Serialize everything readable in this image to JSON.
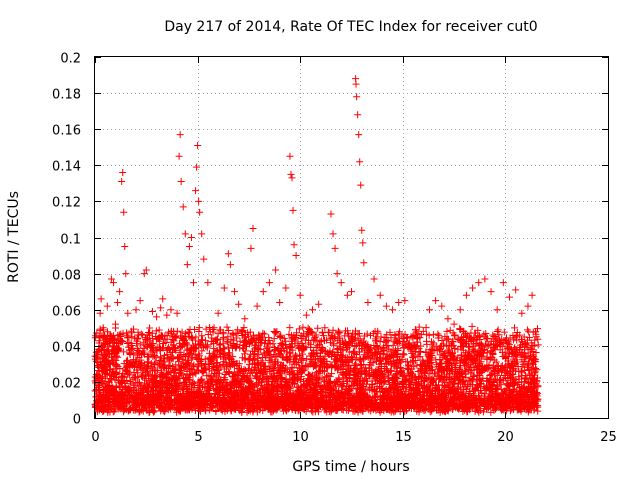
{
  "chart_data": {
    "type": "scatter",
    "title": "Day 217 of 2014, Rate Of TEC Index for receiver cut0",
    "xlabel": "GPS time / hours",
    "ylabel": "ROTI / TECUs",
    "xlim": [
      0,
      25
    ],
    "ylim": [
      0,
      0.2
    ],
    "xticks": [
      0,
      5,
      10,
      15,
      20,
      25
    ],
    "xtick_labels": [
      "0",
      "5",
      "10",
      "15",
      "20",
      "25"
    ],
    "yticks": [
      0,
      0.02,
      0.04,
      0.06,
      0.08,
      0.1,
      0.12,
      0.14,
      0.16,
      0.18,
      0.2
    ],
    "ytick_labels": [
      "0",
      "0.02",
      "0.04",
      "0.06",
      "0.08",
      "0.1",
      "0.12",
      "0.14",
      "0.16",
      "0.18",
      "0.2"
    ],
    "grid": true,
    "legend": "none",
    "marker": "plus",
    "color": "#ff0000",
    "series": [
      {
        "points": [
          [
            0.0,
            0.015
          ],
          [
            0.1,
            0.035
          ],
          [
            0.2,
            0.045
          ],
          [
            0.25,
            0.058
          ],
          [
            0.3,
            0.066
          ],
          [
            0.4,
            0.05
          ],
          [
            0.5,
            0.041
          ],
          [
            0.6,
            0.062
          ],
          [
            0.7,
            0.03
          ],
          [
            0.8,
            0.077
          ],
          [
            0.9,
            0.075
          ],
          [
            1.0,
            0.052
          ],
          [
            1.1,
            0.064
          ],
          [
            1.2,
            0.07
          ],
          [
            1.3,
            0.131
          ],
          [
            1.35,
            0.136
          ],
          [
            1.4,
            0.114
          ],
          [
            1.45,
            0.095
          ],
          [
            1.5,
            0.08
          ],
          [
            1.6,
            0.058
          ],
          [
            1.8,
            0.045
          ],
          [
            2.0,
            0.06
          ],
          [
            2.2,
            0.065
          ],
          [
            2.4,
            0.08
          ],
          [
            2.5,
            0.082
          ],
          [
            2.8,
            0.059
          ],
          [
            3.0,
            0.056
          ],
          [
            3.2,
            0.061
          ],
          [
            3.3,
            0.066
          ],
          [
            3.5,
            0.057
          ],
          [
            3.7,
            0.06
          ],
          [
            4.0,
            0.058
          ],
          [
            4.1,
            0.145
          ],
          [
            4.15,
            0.157
          ],
          [
            4.2,
            0.131
          ],
          [
            4.3,
            0.117
          ],
          [
            4.4,
            0.102
          ],
          [
            4.5,
            0.085
          ],
          [
            4.6,
            0.095
          ],
          [
            4.7,
            0.1
          ],
          [
            4.8,
            0.075
          ],
          [
            4.9,
            0.126
          ],
          [
            4.95,
            0.139
          ],
          [
            5.0,
            0.151
          ],
          [
            5.05,
            0.12
          ],
          [
            5.1,
            0.114
          ],
          [
            5.2,
            0.102
          ],
          [
            5.3,
            0.088
          ],
          [
            5.5,
            0.075
          ],
          [
            5.8,
            0.05
          ],
          [
            6.0,
            0.058
          ],
          [
            6.3,
            0.072
          ],
          [
            6.5,
            0.091
          ],
          [
            6.6,
            0.085
          ],
          [
            6.8,
            0.07
          ],
          [
            7.0,
            0.063
          ],
          [
            7.3,
            0.055
          ],
          [
            7.6,
            0.094
          ],
          [
            7.7,
            0.105
          ],
          [
            7.9,
            0.062
          ],
          [
            8.2,
            0.07
          ],
          [
            8.5,
            0.075
          ],
          [
            8.8,
            0.082
          ],
          [
            9.0,
            0.064
          ],
          [
            9.3,
            0.072
          ],
          [
            9.5,
            0.145
          ],
          [
            9.55,
            0.135
          ],
          [
            9.6,
            0.133
          ],
          [
            9.65,
            0.115
          ],
          [
            9.7,
            0.096
          ],
          [
            9.8,
            0.09
          ],
          [
            10.0,
            0.068
          ],
          [
            10.3,
            0.057
          ],
          [
            10.6,
            0.06
          ],
          [
            10.9,
            0.063
          ],
          [
            11.2,
            0.05
          ],
          [
            11.5,
            0.113
          ],
          [
            11.6,
            0.102
          ],
          [
            11.7,
            0.094
          ],
          [
            11.8,
            0.08
          ],
          [
            12.0,
            0.075
          ],
          [
            12.3,
            0.068
          ],
          [
            12.5,
            0.07
          ],
          [
            12.7,
            0.188
          ],
          [
            12.72,
            0.185
          ],
          [
            12.75,
            0.178
          ],
          [
            12.8,
            0.168
          ],
          [
            12.85,
            0.157
          ],
          [
            12.9,
            0.142
          ],
          [
            12.95,
            0.129
          ],
          [
            13.0,
            0.104
          ],
          [
            13.05,
            0.097
          ],
          [
            13.1,
            0.086
          ],
          [
            13.3,
            0.064
          ],
          [
            13.6,
            0.077
          ],
          [
            13.9,
            0.068
          ],
          [
            14.2,
            0.062
          ],
          [
            14.5,
            0.06
          ],
          [
            14.8,
            0.064
          ],
          [
            15.1,
            0.065
          ],
          [
            15.4,
            0.045
          ],
          [
            15.7,
            0.042
          ],
          [
            16.0,
            0.048
          ],
          [
            16.3,
            0.06
          ],
          [
            16.6,
            0.065
          ],
          [
            16.9,
            0.062
          ],
          [
            17.2,
            0.055
          ],
          [
            17.5,
            0.052
          ],
          [
            17.8,
            0.06
          ],
          [
            18.1,
            0.068
          ],
          [
            18.4,
            0.072
          ],
          [
            18.7,
            0.075
          ],
          [
            19.0,
            0.077
          ],
          [
            19.3,
            0.07
          ],
          [
            19.6,
            0.06
          ],
          [
            19.9,
            0.075
          ],
          [
            20.2,
            0.067
          ],
          [
            20.5,
            0.071
          ],
          [
            20.8,
            0.058
          ],
          [
            21.1,
            0.062
          ],
          [
            21.3,
            0.068
          ],
          [
            21.5,
            0.045
          ]
        ]
      }
    ],
    "dense_band": {
      "x_range": [
        0,
        21.6
      ],
      "y_floor": 0.003,
      "y_typical_max": 0.045,
      "points_per_hour": 260
    }
  }
}
